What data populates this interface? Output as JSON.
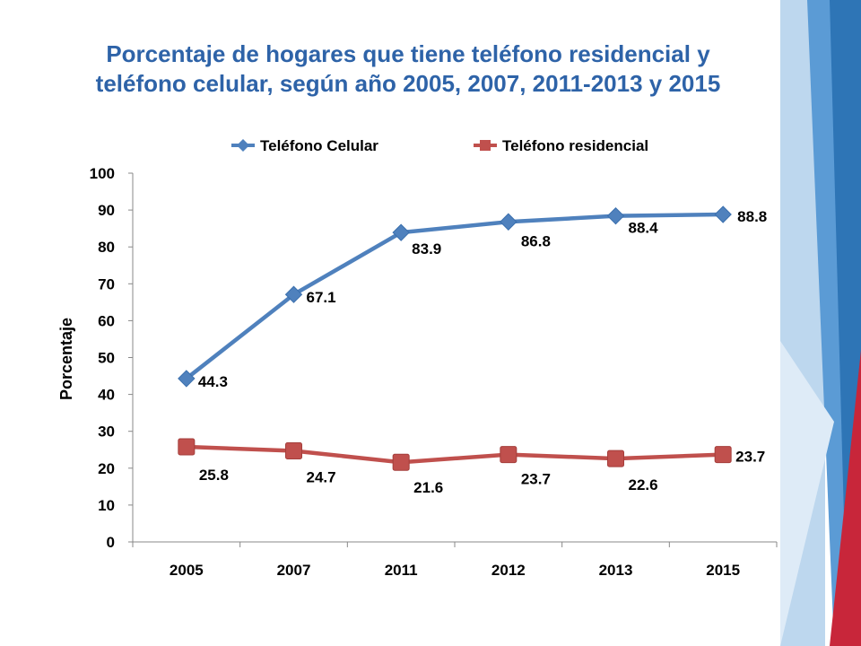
{
  "title_lines": [
    "Porcentaje de hogares que tiene teléfono residencial y",
    "teléfono celular, según año 2005, 2007, 2011-2013 y 2015"
  ],
  "colors": {
    "title": "#2E63A8",
    "celular": "#4F81BD",
    "residencial": "#C0504D",
    "deco_light": "#9DC3E6",
    "deco_mid": "#2E75B6",
    "deco_red": "#C8263A"
  },
  "chart_data": {
    "type": "line",
    "title": "Porcentaje de hogares que tiene teléfono residencial y teléfono celular, según año 2005, 2007, 2011-2013 y 2015",
    "ylabel": "Porcentaje",
    "xlabel": "",
    "categories": [
      "2005",
      "2007",
      "2011",
      "2012",
      "2013",
      "2015"
    ],
    "ylim": [
      0,
      100
    ],
    "yticks": [
      0,
      10,
      20,
      30,
      40,
      50,
      60,
      70,
      80,
      90,
      100
    ],
    "grid": false,
    "legend_position": "top",
    "series": [
      {
        "name": "Teléfono Celular",
        "color": "#4F81BD",
        "marker": "diamond",
        "values": [
          44.3,
          67.1,
          83.9,
          86.8,
          88.4,
          88.8
        ]
      },
      {
        "name": "Teléfono residencial",
        "color": "#C0504D",
        "marker": "square",
        "values": [
          25.8,
          24.7,
          21.6,
          23.7,
          22.6,
          23.7
        ]
      }
    ]
  }
}
